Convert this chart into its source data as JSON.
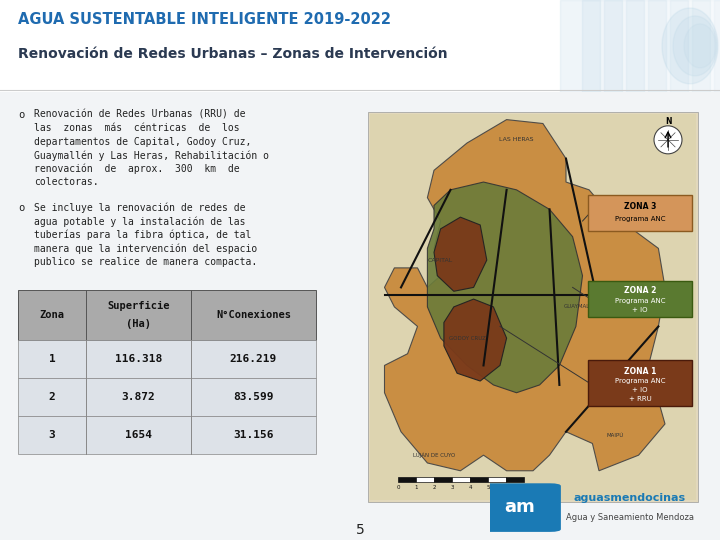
{
  "title_line1": "AGUA SUSTENTABLE INTELIGENTE 2019-2022",
  "title_line2": "Renovación de Redes Urbanas – Zonas de Intervención",
  "title_color1": "#1F6BB0",
  "title_color2": "#2b3a52",
  "bg_color": "#ffffff",
  "content_bg": "#f0f2f5",
  "bullet_color": "#222222",
  "bullet1_lines": [
    "Renovación de Redes Urbanas (RRU) de",
    "las  zonas  más  céntricas  de  los",
    "departamentos de Capital, Godoy Cruz,",
    "Guaymallén y Las Heras, Rehabilitación o",
    "renovación  de  aprox.  300  km  de",
    "colectoras."
  ],
  "bullet2_lines": [
    "Se incluye la renovación de redes de",
    "agua potable y la instalación de las",
    "tuberías para la fibra óptica, de tal",
    "manera que la intervención del espacio",
    "publico se realice de manera compacta."
  ],
  "table_header": [
    "Zona",
    "Superficie\n(Ha)",
    "N°Conexiones"
  ],
  "table_rows": [
    [
      "1",
      "116.318",
      "216.219"
    ],
    [
      "2",
      "3.872",
      "83.599"
    ],
    [
      "3",
      "1654",
      "31.156"
    ]
  ],
  "table_header_bg": "#aaaaaa",
  "table_row_bg": "#dde2e8",
  "table_line_color": "#555555",
  "map_bg": "#e8e0cc",
  "zone3_color": "#c8883a",
  "zone2_color": "#6b7c3a",
  "zone1_color": "#7a3a1a",
  "legend3_bg": "#d4955a",
  "legend2_bg": "#5a7a30",
  "legend1_bg": "#7a3a1a",
  "legend3_border": "#c07030",
  "legend2_border": "#4a6a20",
  "legend1_border": "#5a2a0a",
  "road_color": "#111111",
  "scale_color": "#111111",
  "page_number": "5",
  "logo_blue": "#1a7ab5",
  "logo_text": "aguasmendocinas",
  "logo_sub": "Agua y Saneamiento Mendoza"
}
